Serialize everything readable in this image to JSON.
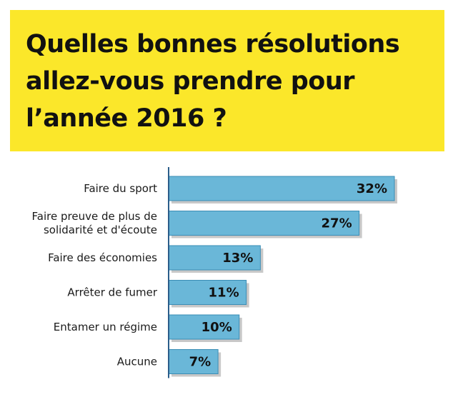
{
  "title": "Quelles bonnes résolutions\nallez-vous prendre pour\nl’année 2016 ?",
  "colors": {
    "banner": "#fbe72a",
    "bar": "#6ab7d8",
    "bar_border": "#3a8db5",
    "axis": "#2b5d8a",
    "shadow": "#c8c8c8"
  },
  "chart_data": {
    "type": "bar",
    "orientation": "horizontal",
    "categories": [
      [
        "Faire du sport"
      ],
      [
        "Faire preuve de plus de",
        "solidarité et d'écoute"
      ],
      [
        "Faire des économies"
      ],
      [
        "Arrêter de fumer"
      ],
      [
        "Entamer un régime"
      ],
      [
        "Aucune"
      ]
    ],
    "values": [
      32,
      27,
      13,
      11,
      10,
      7
    ],
    "value_labels": [
      "32%",
      "27%",
      "13%",
      "11%",
      "10%",
      "7%"
    ],
    "xlim": [
      0,
      32
    ],
    "grid": false,
    "legend": "none"
  }
}
